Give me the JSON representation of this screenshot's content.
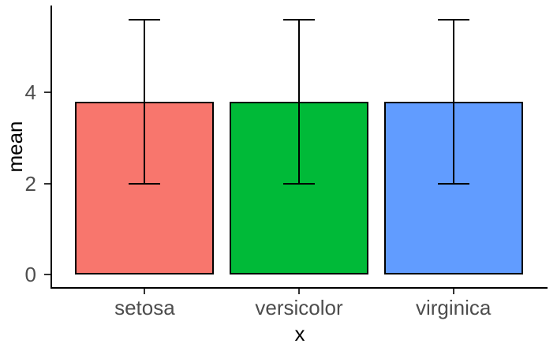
{
  "chart_data": {
    "type": "bar",
    "title": "",
    "categories": [
      "setosa",
      "versicolor",
      "virginica"
    ],
    "series": [
      {
        "name": "mean",
        "values": [
          3.8,
          3.8,
          3.8
        ]
      }
    ],
    "error_bars": {
      "ymin": [
        2.0,
        2.0,
        2.0
      ],
      "ymax": [
        5.6,
        5.6,
        5.6
      ]
    },
    "bar_colors": [
      "#F8766D",
      "#00BA38",
      "#619CFF"
    ],
    "bar_border_color": "#000000",
    "error_bar_color": "#000000",
    "xlabel": "x",
    "ylabel": "mean",
    "y_ticks": [
      0,
      2,
      4
    ],
    "ylim": [
      -0.28,
      5.91
    ],
    "grid": false,
    "legend": "none",
    "background": "#FFFFFF",
    "axis_line_color": "#000000",
    "tick_mark_color": "#333333",
    "tick_label_color": "#4D4D4D",
    "axis_title_color": "#000000"
  }
}
